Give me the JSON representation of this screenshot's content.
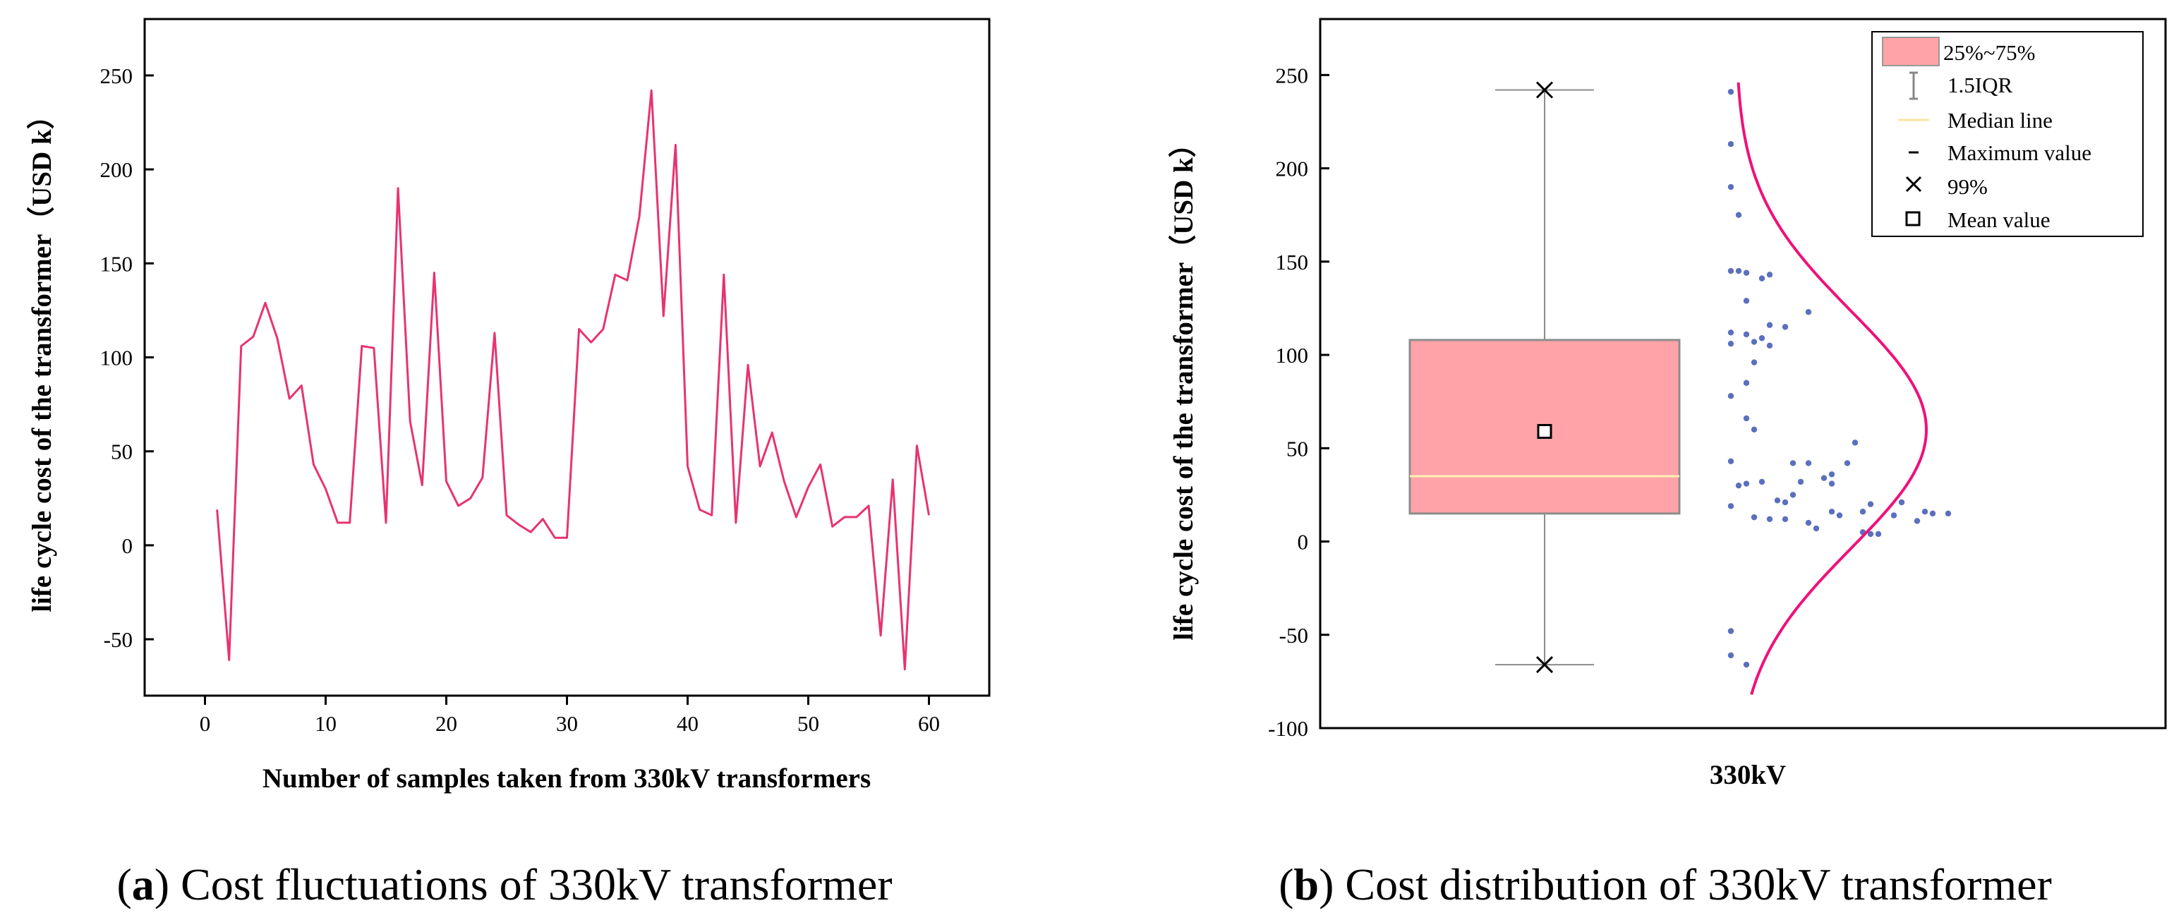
{
  "chart_data": [
    {
      "type": "line",
      "xlabel": "Number of samples taken from 330kV transformers",
      "ylabel": "life cycle cost of the transformer（USD k）",
      "xlim": [
        -5,
        65
      ],
      "ylim": [
        -80,
        280
      ],
      "xticks": [
        0,
        10,
        20,
        30,
        40,
        50,
        60
      ],
      "yticks": [
        -50,
        0,
        50,
        100,
        150,
        200,
        250
      ],
      "grid": false,
      "line_color": "#e8336e",
      "series": [
        {
          "x": [
            1,
            2,
            3,
            4,
            5,
            6,
            7,
            8,
            9,
            10,
            11,
            12,
            13,
            14,
            15,
            16,
            17,
            18,
            19,
            20,
            21,
            22,
            23,
            24,
            25,
            26,
            27,
            28,
            29,
            30,
            31,
            32,
            33,
            34,
            35,
            36,
            37,
            38,
            39,
            40,
            41,
            42,
            43,
            44,
            45,
            46,
            47,
            48,
            49,
            50,
            51,
            52,
            53,
            54,
            55,
            56,
            57,
            58,
            59,
            60
          ],
          "values": [
            19,
            -61,
            106,
            111,
            129,
            110,
            78,
            85,
            43,
            30,
            12,
            12,
            106,
            105,
            12,
            190,
            66,
            32,
            145,
            34,
            21,
            25,
            36,
            113,
            16,
            11,
            7,
            14,
            4,
            4,
            115,
            108,
            115,
            144,
            141,
            175,
            242,
            122,
            213,
            42,
            19,
            16,
            144,
            12,
            96,
            42,
            60,
            34,
            15,
            31,
            43,
            10,
            15,
            15,
            21,
            -48,
            35,
            -66,
            53,
            16
          ]
        }
      ],
      "caption_label": "a",
      "caption_text": "Cost fluctuations of 330kV transformer"
    },
    {
      "type": "box",
      "category": "330kV",
      "ylabel": "life cycle cost of the transformer（USD k）",
      "ylim": [
        -100,
        280
      ],
      "yticks": [
        -100,
        -50,
        0,
        50,
        100,
        150,
        200,
        250
      ],
      "grid": false,
      "box": {
        "q1": 15,
        "q3": 108,
        "median": 35,
        "mean": 59,
        "whisker_low": -66,
        "whisker_high": 242,
        "p99_high": 242,
        "p1_low": -66,
        "fill": "#ffa3a8",
        "median_color": "#fff2b3"
      },
      "points": [
        [
          241,
          0
        ],
        [
          213,
          0
        ],
        [
          190,
          0
        ],
        [
          175,
          1
        ],
        [
          145,
          0
        ],
        [
          145,
          1
        ],
        [
          144,
          2
        ],
        [
          141,
          4
        ],
        [
          143,
          5
        ],
        [
          129,
          2
        ],
        [
          123,
          10
        ],
        [
          116,
          5
        ],
        [
          115,
          7
        ],
        [
          112,
          0
        ],
        [
          111,
          2
        ],
        [
          109,
          4
        ],
        [
          107,
          3
        ],
        [
          106,
          0
        ],
        [
          105,
          5
        ],
        [
          96,
          3
        ],
        [
          85,
          2
        ],
        [
          78,
          0
        ],
        [
          66,
          2
        ],
        [
          60,
          3
        ],
        [
          53,
          16
        ],
        [
          43,
          0
        ],
        [
          42,
          8
        ],
        [
          42,
          10
        ],
        [
          42,
          15
        ],
        [
          36,
          13
        ],
        [
          34,
          12
        ],
        [
          32,
          9
        ],
        [
          31,
          2
        ],
        [
          32,
          4
        ],
        [
          31,
          13
        ],
        [
          30,
          1
        ],
        [
          25,
          8
        ],
        [
          22,
          6
        ],
        [
          21,
          7
        ],
        [
          21,
          22
        ],
        [
          20,
          18
        ],
        [
          19,
          0
        ],
        [
          16,
          13
        ],
        [
          16,
          17
        ],
        [
          16,
          25
        ],
        [
          15,
          26
        ],
        [
          15,
          28
        ],
        [
          14,
          14
        ],
        [
          14,
          21
        ],
        [
          13,
          3
        ],
        [
          12,
          5
        ],
        [
          12,
          7
        ],
        [
          11,
          24
        ],
        [
          10,
          10
        ],
        [
          7,
          11
        ],
        [
          5,
          17
        ],
        [
          4,
          19
        ],
        [
          4,
          18
        ],
        [
          -48,
          0
        ],
        [
          -61,
          0
        ],
        [
          -66,
          2
        ]
      ],
      "point_color": "#5a6fbd",
      "curve_color": "#f0107a",
      "legend": {
        "position": "top-right",
        "items": [
          "25%~75%",
          "1.5IQR",
          "Median line",
          "Maximum value",
          "99%",
          "Mean value"
        ]
      },
      "caption_label": "b",
      "caption_text": "Cost distribution of 330kV transformer"
    }
  ]
}
